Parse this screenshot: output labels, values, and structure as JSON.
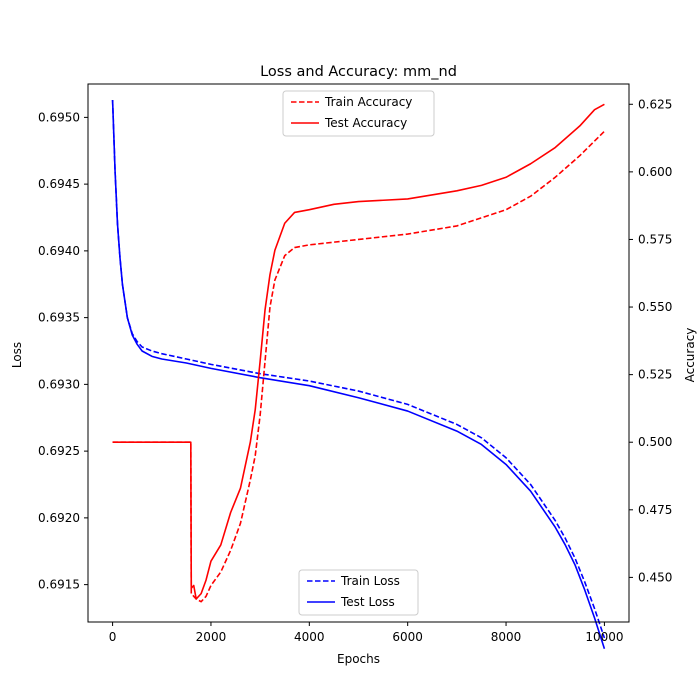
{
  "chart_data": {
    "type": "line",
    "title": "Loss and Accuracy: mm_nd",
    "xlabel": "Epochs",
    "ylabel_left": "Loss",
    "ylabel_right": "Accuracy",
    "xlim": [
      -500,
      10500
    ],
    "ylim_left": [
      0.69122,
      0.69525
    ],
    "ylim_right": [
      0.4335,
      0.6325
    ],
    "x_ticks": [
      0,
      2000,
      4000,
      6000,
      8000,
      10000
    ],
    "y_left_ticks": [
      0.6915,
      0.692,
      0.6925,
      0.693,
      0.6935,
      0.694,
      0.6945,
      0.695
    ],
    "y_right_ticks": [
      0.45,
      0.475,
      0.5,
      0.525,
      0.55,
      0.575,
      0.6,
      0.625
    ],
    "grid": false,
    "legend_accuracy": {
      "placement": "upper-center",
      "entries": [
        "Train Accuracy",
        "Test Accuracy"
      ]
    },
    "legend_loss": {
      "placement": "lower-center",
      "entries": [
        "Train Loss",
        "Test Loss"
      ]
    },
    "series": [
      {
        "name": "Train Loss",
        "axis": "left",
        "color": "#0000ff",
        "dash": "dashed",
        "x": [
          0,
          50,
          100,
          150,
          200,
          300,
          400,
          500,
          600,
          800,
          1000,
          1500,
          2000,
          3000,
          4000,
          5000,
          6000,
          7000,
          7500,
          8000,
          8500,
          9000,
          9200,
          9400,
          9600,
          9800,
          10000
        ],
        "values": [
          0.69513,
          0.6946,
          0.6942,
          0.69395,
          0.69375,
          0.6935,
          0.69338,
          0.69332,
          0.69328,
          0.69325,
          0.69323,
          0.69319,
          0.69315,
          0.69308,
          0.693025,
          0.69295,
          0.69285,
          0.6927,
          0.6926,
          0.69245,
          0.69225,
          0.69198,
          0.69185,
          0.6917,
          0.69152,
          0.69132,
          0.6911
        ]
      },
      {
        "name": "Test Loss",
        "axis": "left",
        "color": "#0000ff",
        "dash": "solid",
        "x": [
          0,
          50,
          100,
          150,
          200,
          300,
          400,
          500,
          600,
          800,
          1000,
          1500,
          2000,
          3000,
          4000,
          5000,
          6000,
          7000,
          7500,
          8000,
          8500,
          9000,
          9200,
          9400,
          9600,
          9800,
          10000
        ],
        "values": [
          0.69513,
          0.6946,
          0.6942,
          0.69395,
          0.69375,
          0.6935,
          0.69337,
          0.6933,
          0.69325,
          0.69321,
          0.69319,
          0.69316,
          0.69312,
          0.69305,
          0.69299,
          0.6929,
          0.6928,
          0.69265,
          0.69255,
          0.6924,
          0.6922,
          0.69193,
          0.6918,
          0.69165,
          0.69146,
          0.69125,
          0.69102
        ]
      },
      {
        "name": "Train Accuracy",
        "axis": "right",
        "color": "#ff0000",
        "dash": "dashed",
        "x": [
          0,
          1590,
          1600,
          1650,
          1700,
          1800,
          1900,
          2000,
          2200,
          2400,
          2600,
          2800,
          2900,
          3000,
          3100,
          3200,
          3300,
          3500,
          3700,
          4000,
          4500,
          5000,
          6000,
          7000,
          7500,
          8000,
          8500,
          9000,
          9500,
          10000
        ],
        "values": [
          0.5,
          0.5,
          0.444,
          0.443,
          0.442,
          0.441,
          0.443,
          0.447,
          0.452,
          0.46,
          0.47,
          0.486,
          0.495,
          0.51,
          0.53,
          0.55,
          0.56,
          0.569,
          0.572,
          0.573,
          0.574,
          0.575,
          0.577,
          0.58,
          0.583,
          0.586,
          0.591,
          0.598,
          0.606,
          0.615
        ]
      },
      {
        "name": "Test Accuracy",
        "axis": "right",
        "color": "#ff0000",
        "dash": "solid",
        "x": [
          0,
          1590,
          1600,
          1650,
          1700,
          1800,
          1900,
          2000,
          2200,
          2400,
          2600,
          2800,
          2900,
          3000,
          3100,
          3200,
          3300,
          3500,
          3700,
          4000,
          4500,
          5000,
          6000,
          7000,
          7500,
          8000,
          8500,
          9000,
          9500,
          9800,
          10000
        ],
        "values": [
          0.5,
          0.5,
          0.446,
          0.447,
          0.442,
          0.444,
          0.449,
          0.456,
          0.462,
          0.474,
          0.483,
          0.5,
          0.512,
          0.53,
          0.549,
          0.562,
          0.571,
          0.581,
          0.585,
          0.586,
          0.588,
          0.589,
          0.59,
          0.593,
          0.595,
          0.598,
          0.603,
          0.609,
          0.617,
          0.623,
          0.625
        ]
      }
    ]
  }
}
